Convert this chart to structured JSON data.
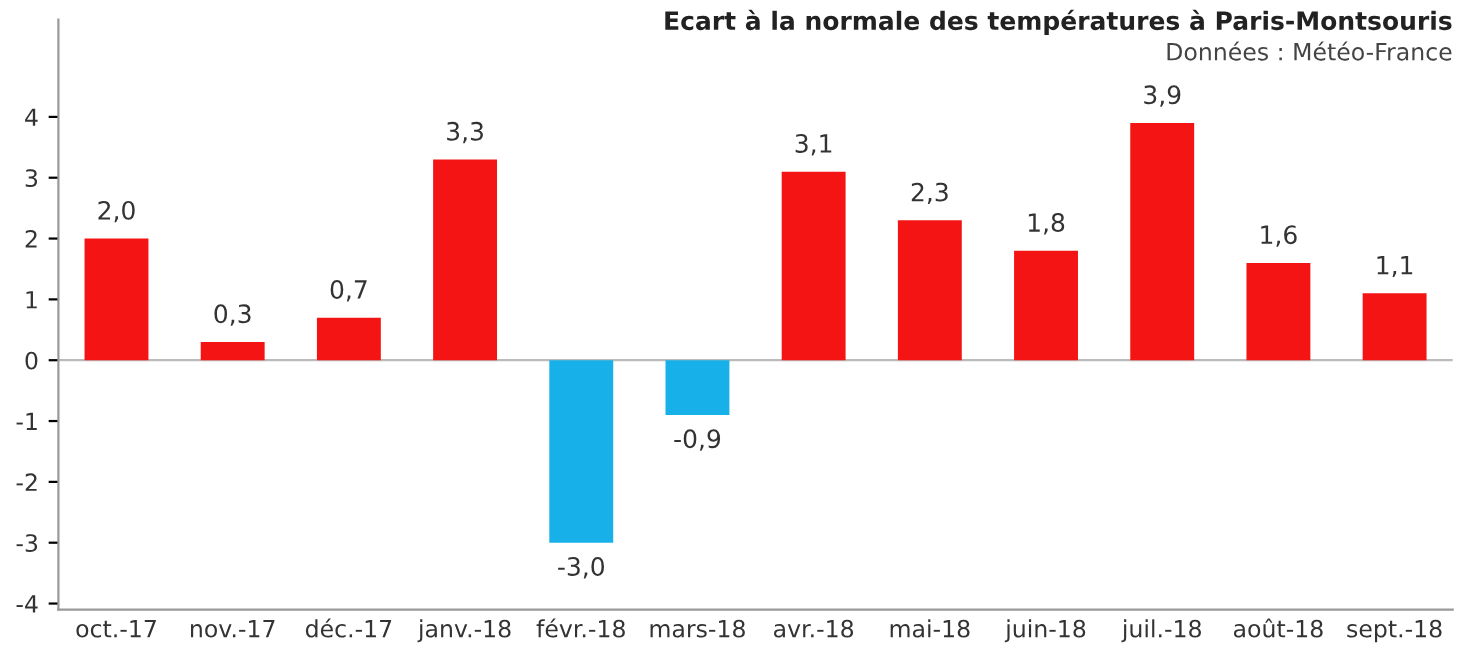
{
  "chart_data": {
    "type": "bar",
    "title": "Ecart à la normale des températures à Paris-Montsouris",
    "subtitle": "Données : Météo-France",
    "categories": [
      "oct.-17",
      "nov.-17",
      "déc.-17",
      "janv.-18",
      "févr.-18",
      "mars-18",
      "avr.-18",
      "mai-18",
      "juin-18",
      "juil.-18",
      "août-18",
      "sept.-18"
    ],
    "values": [
      2.0,
      0.3,
      0.7,
      3.3,
      -3.0,
      -0.9,
      3.1,
      2.3,
      1.8,
      3.9,
      1.6,
      1.1
    ],
    "value_labels": [
      "2,0",
      "0,3",
      "0,7",
      "3,3",
      "-3,0",
      "-0,9",
      "3,1",
      "2,3",
      "1,8",
      "3,9",
      "1,6",
      "1,1"
    ],
    "colors": [
      "#f51414",
      "#f51414",
      "#f51414",
      "#f51414",
      "#17b0e8",
      "#17b0e8",
      "#f51414",
      "#f51414",
      "#f51414",
      "#f51414",
      "#f51414",
      "#f51414"
    ],
    "ylim": [
      -4.1,
      5.6
    ],
    "yticks": [
      -4,
      -3,
      -2,
      -1,
      0,
      1,
      2,
      3,
      4
    ],
    "grid": false,
    "ref_lines": [
      {
        "axis": "y",
        "value": 0,
        "color": "#bbbbbb"
      }
    ],
    "legend": false
  }
}
